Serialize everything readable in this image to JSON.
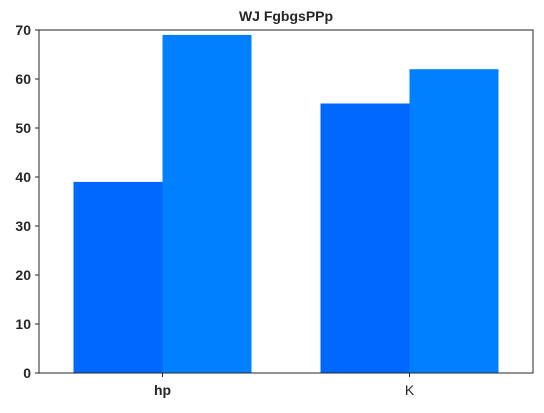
{
  "chart_data": {
    "type": "bar",
    "title": "WJ FgbgsPPp",
    "xlabel": "",
    "ylabel": "",
    "categories": [
      "hp",
      "K"
    ],
    "category_label_weights": [
      "bold",
      "normal"
    ],
    "series": [
      {
        "values": [
          39,
          55
        ],
        "color": "#0068ff"
      },
      {
        "values": [
          69,
          62
        ],
        "color": "#0080ff"
      }
    ],
    "ylim": [
      0,
      70
    ],
    "yticks": [
      0,
      10,
      20,
      30,
      40,
      50,
      60,
      70
    ],
    "grid": false,
    "legend": "none"
  }
}
